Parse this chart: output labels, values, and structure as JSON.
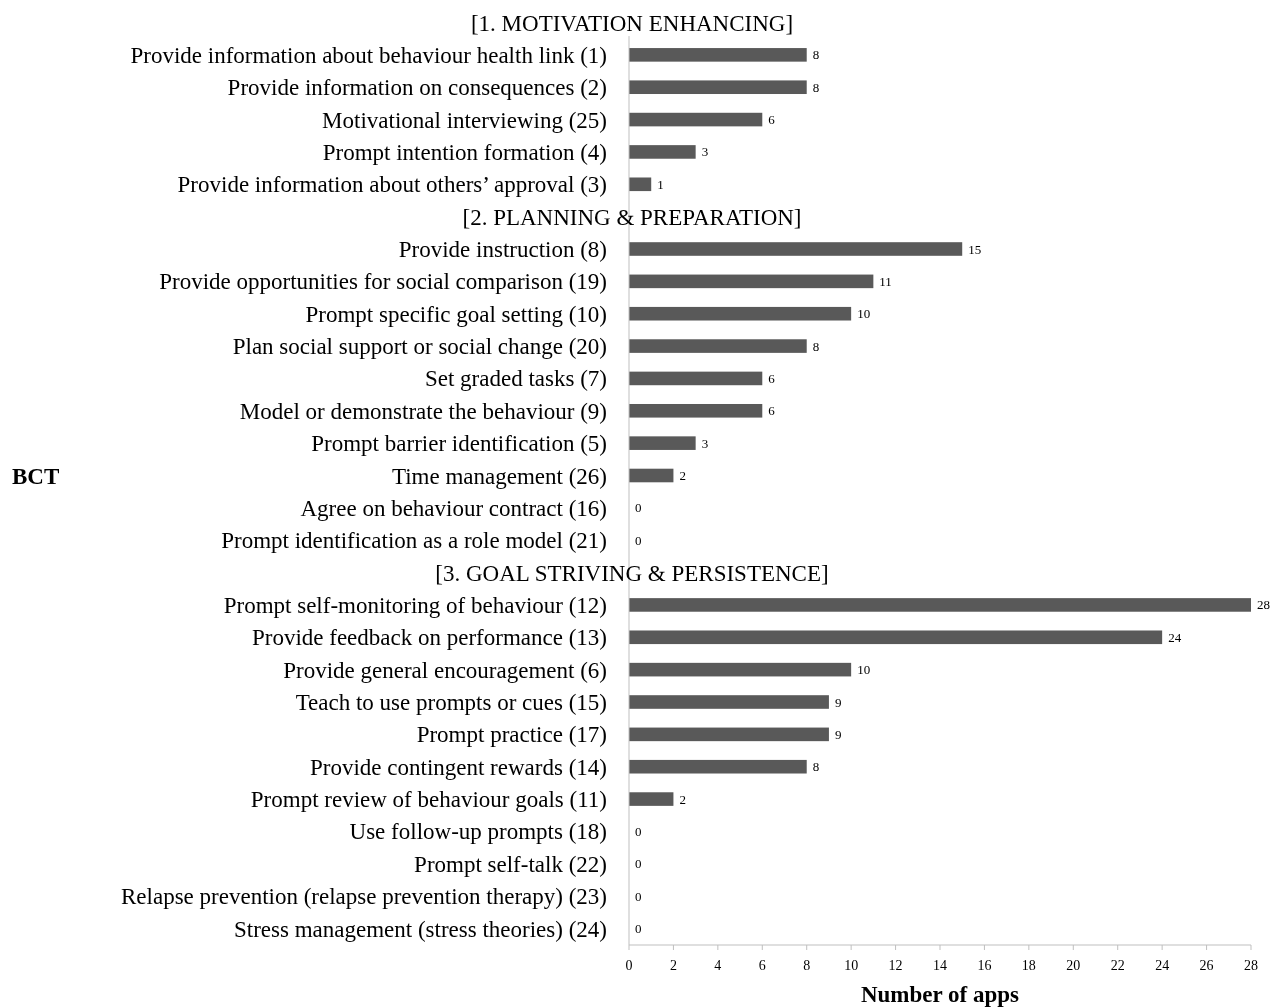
{
  "chart_data": {
    "type": "bar",
    "orientation": "horizontal",
    "xlabel": "Number of apps",
    "ylabel": "BCT",
    "annotations": [
      "[1. MOTIVATION ENHANCING]",
      "[2. PLANNING & PREPARATION]",
      "[3. GOAL STRIVING & PERSISTENCE]"
    ],
    "categories": [
      null,
      "Provide information about behaviour health link (1)",
      "Provide information on consequences (2)",
      "Motivational interviewing (25)",
      "Prompt intention formation (4)",
      "Provide information about others’ approval (3)",
      null,
      "Provide instruction (8)",
      "Provide opportunities for social comparison (19)",
      "Prompt specific goal setting (10)",
      "Plan social support or social change (20)",
      "Set graded tasks (7)",
      "Model or demonstrate the behaviour (9)",
      "Prompt barrier identification (5)",
      "Time management (26)",
      "Agree on behaviour contract (16)",
      "Prompt identification as a role model (21)",
      null,
      "Prompt self-monitoring of behaviour (12)",
      "Provide feedback on performance (13)",
      "Provide general encouragement (6)",
      "Teach to use prompts or cues (15)",
      "Prompt practice (17)",
      "Provide contingent rewards (14)",
      "Prompt review of behaviour goals (11)",
      "Use follow-up prompts (18)",
      "Prompt self-talk (22)",
      "Relapse prevention (relapse prevention therapy) (23)",
      "Stress management (stress theories) (24)"
    ],
    "values": [
      null,
      8,
      8,
      6,
      3,
      1,
      null,
      15,
      11,
      10,
      8,
      6,
      6,
      3,
      2,
      0,
      0,
      null,
      28,
      24,
      10,
      9,
      9,
      8,
      2,
      0,
      0,
      0,
      0
    ],
    "color": "#595959",
    "xlim": [
      0,
      28
    ],
    "xticks": [
      0,
      2,
      4,
      6,
      8,
      10,
      12,
      14,
      16,
      18,
      20,
      22,
      24,
      26,
      28
    ],
    "data_labels": true,
    "grid": false
  }
}
